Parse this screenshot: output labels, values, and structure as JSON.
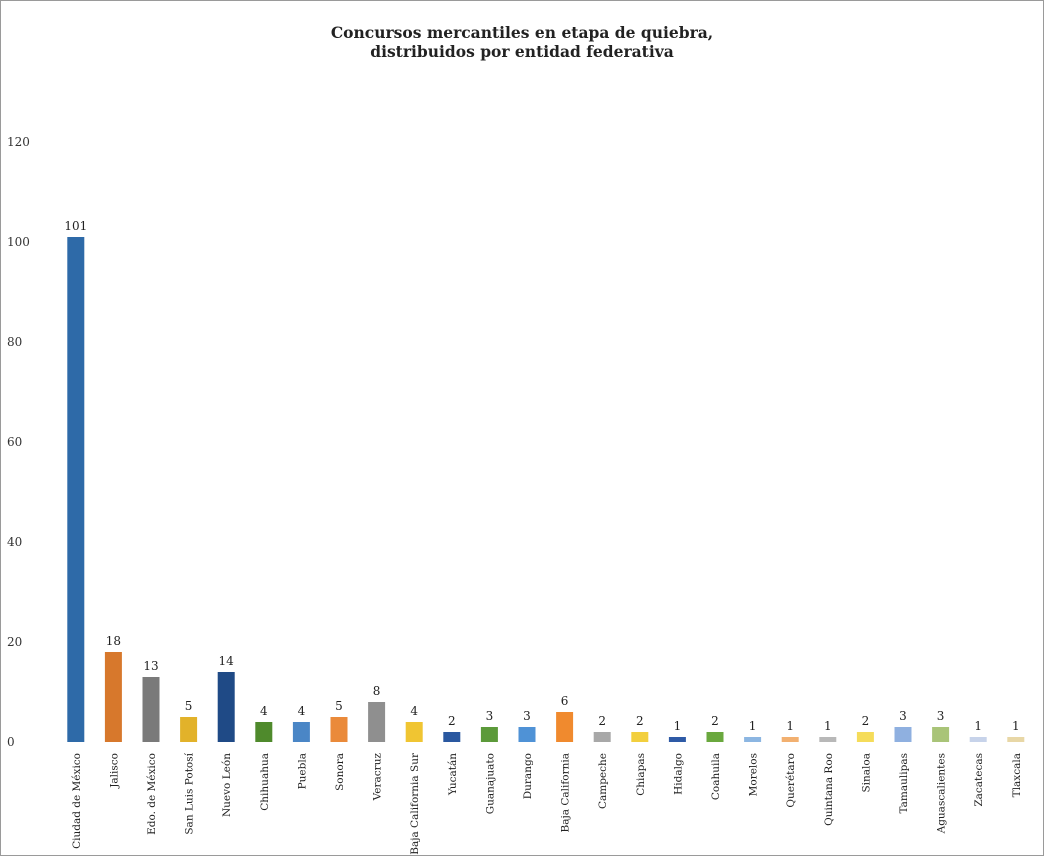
{
  "chart_data": {
    "type": "bar",
    "title_line1": "Concursos mercantiles en etapa de quiebra,",
    "title_line2": "distribuidos por entidad federativa",
    "xlabel": "",
    "ylabel": "",
    "ylim": [
      0,
      120
    ],
    "yticks": [
      "0",
      "20",
      "40",
      "60",
      "80",
      "100",
      "120"
    ],
    "grid": false,
    "legend": "none",
    "categories": [
      "Ciudad de México",
      "Jalisco",
      "Edo. de México",
      "San Luis Potosí",
      "Nuevo León",
      "Chihuahua",
      "Puebla",
      "Sonora",
      "Veracruz",
      "Baja California Sur",
      "Yucatán",
      "Guanajuato",
      "Durango",
      "Baja California",
      "Campeche",
      "Chiapas",
      "Hidalgo",
      "Coahuila",
      "Morelos",
      "Querétaro",
      "Quintana Roo",
      "Sinaloa",
      "Tamaulipas",
      "Aguascalientes",
      "Zacatecas",
      "Tlaxcala"
    ],
    "values": [
      101,
      18,
      13,
      5,
      14,
      4,
      4,
      5,
      8,
      4,
      2,
      3,
      3,
      6,
      2,
      2,
      1,
      2,
      1,
      1,
      1,
      2,
      3,
      3,
      1,
      1
    ],
    "colors": [
      "#2e6aa8",
      "#d7782c",
      "#7a7a7a",
      "#e2b22a",
      "#1f4a86",
      "#4f8a2c",
      "#4a86c6",
      "#ea8a3a",
      "#8f8f8f",
      "#f0c532",
      "#2a58a0",
      "#5c9a3a",
      "#4f92d6",
      "#f08a2e",
      "#a8a8a8",
      "#f2cf3e",
      "#2e5aa6",
      "#6aa83e",
      "#8cb6e2",
      "#f2b070",
      "#b8b8b8",
      "#f5dc5a",
      "#8fb0e0",
      "#a9c478",
      "#c7d3ea",
      "#e8d7a6"
    ]
  }
}
